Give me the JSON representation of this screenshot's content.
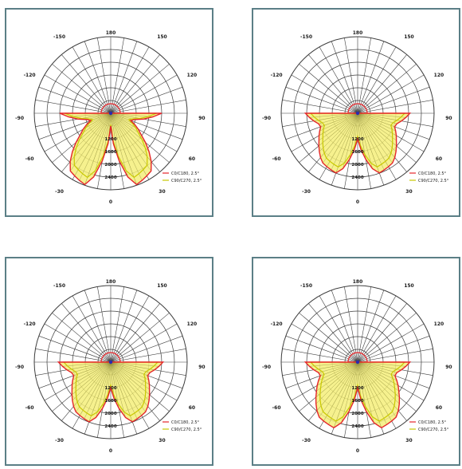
{
  "colors": {
    "frame": "#5b7f86",
    "grid": "#3d3d3d",
    "curve_c0": "#e5252a",
    "curve_c90": "#c8c800",
    "fill": "#f4ef7a",
    "label": "#1a1a1a"
  },
  "chart_data": [
    {
      "type": "polar",
      "angle_labels": [
        "180",
        "150",
        "120",
        "90",
        "60",
        "30",
        "0",
        "-150",
        "-120",
        "-90",
        "-60",
        "-30"
      ],
      "radial_labels": [
        "1200",
        "1600",
        "2000",
        "2400"
      ],
      "legend": [
        {
          "text": "C0/C180, 2.5°"
        },
        {
          "text": "C90/C270, 2.5°"
        }
      ],
      "series": [
        {
          "key": "c0",
          "profile": [
            20,
            120,
            110,
            60,
            30,
            80
          ]
        },
        {
          "key": "c90",
          "profile": [
            20,
            120,
            110,
            60,
            30,
            80
          ]
        }
      ]
    },
    {
      "type": "polar",
      "angle_labels": [
        "180",
        "150",
        "120",
        "90",
        "60",
        "30",
        "0",
        "-150",
        "-120",
        "-90",
        "-60",
        "-30"
      ],
      "radial_labels": [
        "1200",
        "1600",
        "2000",
        "2400"
      ],
      "legend": [
        {
          "text": "C0/C180, 2.5°"
        },
        {
          "text": "C90/C270, 2.5°"
        }
      ],
      "series": [
        {
          "key": "c0",
          "profile": [
            40,
            100,
            95,
            75,
            60,
            82
          ]
        },
        {
          "key": "c90",
          "profile": [
            40,
            100,
            95,
            75,
            60,
            82
          ]
        }
      ]
    },
    {
      "type": "polar",
      "angle_labels": [
        "180",
        "150",
        "120",
        "90",
        "60",
        "30",
        "0",
        "-150",
        "-120",
        "-90",
        "-60",
        "-30"
      ],
      "radial_labels": [
        "1200",
        "1600",
        "2000",
        "2400"
      ],
      "legend": [
        {
          "text": "C0/C180, 2.5°"
        },
        {
          "text": "C90/C270, 2.5°"
        }
      ],
      "series": [
        {
          "key": "c0",
          "profile": [
            40,
            100,
            95,
            75,
            60,
            82
          ]
        },
        {
          "key": "c90",
          "profile": [
            40,
            100,
            95,
            75,
            60,
            82
          ]
        }
      ]
    },
    {
      "type": "polar",
      "angle_labels": [
        "180",
        "150",
        "120",
        "90",
        "60",
        "30",
        "0",
        "-150",
        "-120",
        "-90",
        "-60",
        "-30"
      ],
      "radial_labels": [
        "1200",
        "1600",
        "2000",
        "2400"
      ],
      "legend": [
        {
          "text": "C0/C180, 2.5°"
        },
        {
          "text": "C90/C270, 2.5°"
        }
      ],
      "series": [
        {
          "key": "c0",
          "profile": [
            40,
            110,
            105,
            80,
            60,
            82
          ]
        },
        {
          "key": "c90",
          "profile": [
            40,
            110,
            105,
            80,
            60,
            82
          ]
        }
      ]
    }
  ]
}
